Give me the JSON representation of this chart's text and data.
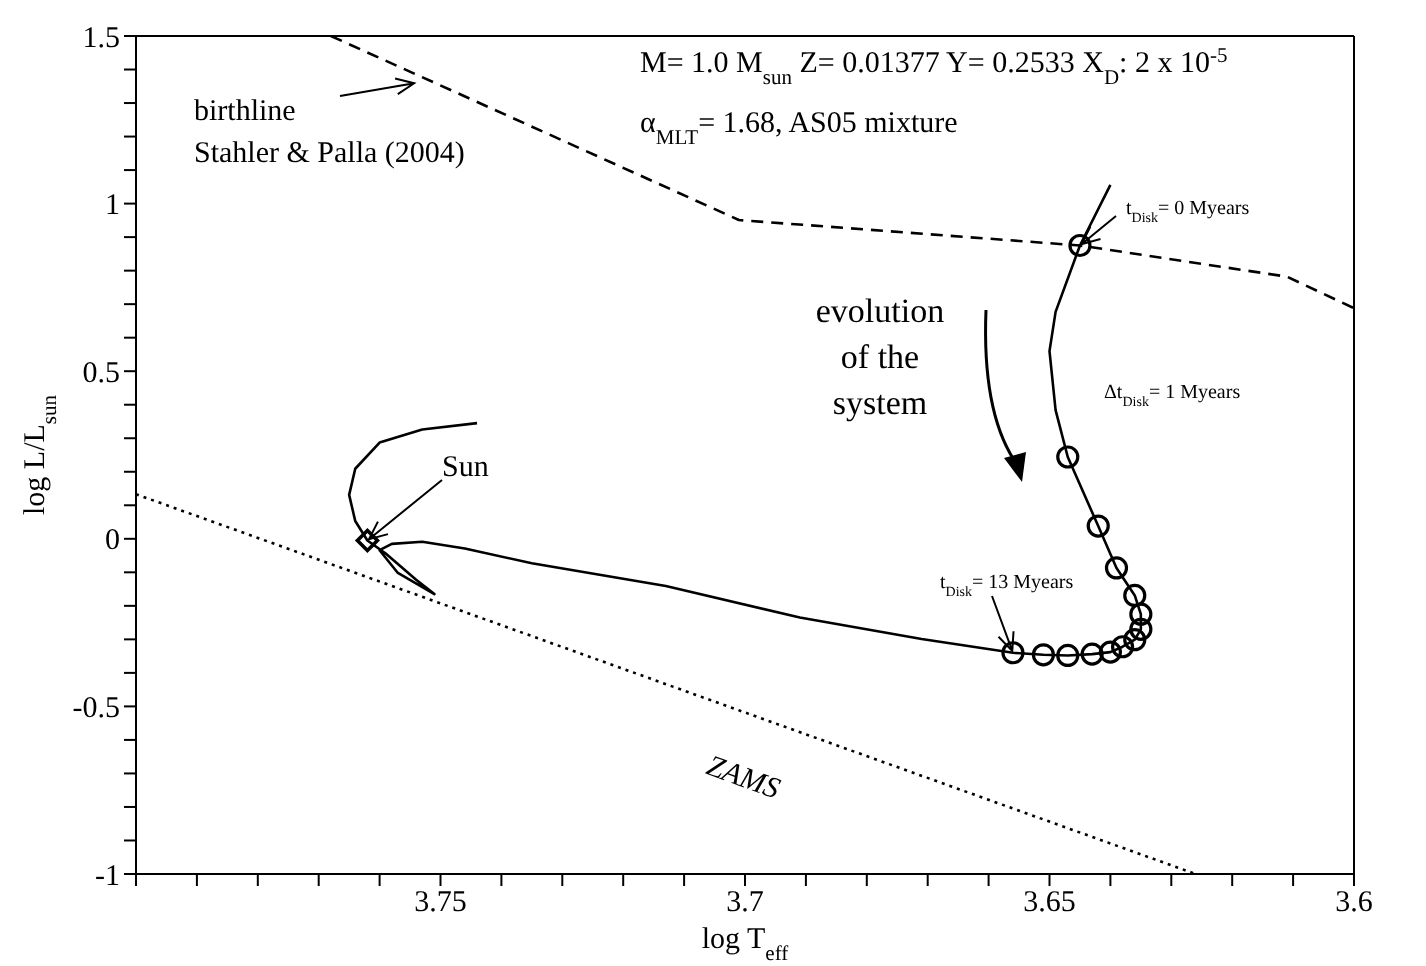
{
  "chart_data": {
    "type": "line",
    "xlabel": "log T$_{eff}$",
    "ylabel": "log L/L$_{sun}$",
    "xlim": [
      3.8,
      3.6
    ],
    "ylim": [
      -1,
      1.5
    ],
    "xticks": [
      {
        "value": 3.8,
        "label": null
      },
      {
        "value": 3.79,
        "label": null
      },
      {
        "value": 3.78,
        "label": null
      },
      {
        "value": 3.77,
        "label": null
      },
      {
        "value": 3.76,
        "label": null
      },
      3.75,
      {
        "value": 3.74,
        "label": null
      },
      {
        "value": 3.73,
        "label": null
      },
      {
        "value": 3.72,
        "label": null
      },
      {
        "value": 3.71,
        "label": null
      },
      3.7,
      {
        "value": 3.69,
        "label": null
      },
      {
        "value": 3.68,
        "label": null
      },
      {
        "value": 3.67,
        "label": null
      },
      {
        "value": 3.66,
        "label": null
      },
      3.65,
      {
        "value": 3.64,
        "label": null
      },
      {
        "value": 3.63,
        "label": null
      },
      {
        "value": 3.62,
        "label": null
      },
      {
        "value": 3.61,
        "label": null
      },
      3.6
    ],
    "yticks": [
      -1,
      {
        "value": -0.9,
        "label": null
      },
      {
        "value": -0.8,
        "label": null
      },
      {
        "value": -0.7,
        "label": null
      },
      {
        "value": -0.6,
        "label": null
      },
      -0.5,
      {
        "value": -0.4,
        "label": null
      },
      {
        "value": -0.3,
        "label": null
      },
      {
        "value": -0.2,
        "label": null
      },
      {
        "value": -0.1,
        "label": null
      },
      0,
      {
        "value": 0.1,
        "label": null
      },
      {
        "value": 0.2,
        "label": null
      },
      {
        "value": 0.3,
        "label": null
      },
      {
        "value": 0.4,
        "label": null
      },
      0.5,
      {
        "value": 0.6,
        "label": null
      },
      {
        "value": 0.7,
        "label": null
      },
      {
        "value": 0.8,
        "label": null
      },
      {
        "value": 0.9,
        "label": null
      },
      1,
      {
        "value": 1.1,
        "label": null
      },
      {
        "value": 1.2,
        "label": null
      },
      {
        "value": 1.3,
        "label": null
      },
      {
        "value": 1.4,
        "label": null
      },
      1.5
    ],
    "series": [
      {
        "color": "#000000",
        "line_style": "solid",
        "marker": "none",
        "x": [
          3.64,
          3.645,
          3.649,
          3.65,
          3.649,
          3.647,
          3.642,
          3.639,
          3.636,
          3.635,
          3.635,
          3.636,
          3.638,
          3.64,
          3.643,
          3.647,
          3.651,
          3.656,
          3.671,
          3.691,
          3.713,
          3.735,
          3.746,
          3.753,
          3.758,
          3.76,
          3.757,
          3.751,
          3.754,
          3.759,
          3.762,
          3.764,
          3.765,
          3.764,
          3.76,
          3.753,
          3.744
        ],
        "values": [
          1.056,
          0.875,
          0.677,
          0.56,
          0.384,
          0.244,
          0.038,
          -0.087,
          -0.169,
          -0.225,
          -0.27,
          -0.301,
          -0.322,
          -0.338,
          -0.344,
          -0.348,
          -0.346,
          -0.34,
          -0.299,
          -0.235,
          -0.141,
          -0.073,
          -0.029,
          -0.009,
          -0.015,
          -0.034,
          -0.102,
          -0.165,
          -0.122,
          -0.044,
          -0.005,
          0.053,
          0.131,
          0.209,
          0.287,
          0.326,
          0.345
        ]
      },
      {
        "color": "#000000",
        "line_style": "dashed",
        "marker": "none",
        "x": [
          3.768,
          3.701,
          3.645,
          3.611,
          3.6
        ],
        "values": [
          1.5,
          0.951,
          0.875,
          0.782,
          0.688
        ]
      },
      {
        "color": "#000000",
        "line_style": "dotted",
        "marker": "none",
        "x": [
          3.8,
          3.626
        ],
        "values": [
          0.133,
          -1
        ]
      },
      {
        "type": "scatter",
        "color": "#000000",
        "marker": "circle",
        "x": [
          3.645,
          3.647,
          3.642,
          3.639,
          3.636,
          3.635,
          3.635,
          3.636,
          3.638,
          3.64,
          3.643,
          3.647,
          3.651,
          3.656
        ],
        "values": [
          0.875,
          0.244,
          0.038,
          -0.087,
          -0.169,
          -0.225,
          -0.27,
          -0.301,
          -0.322,
          -0.338,
          -0.344,
          -0.348,
          -0.346,
          -0.34
        ]
      },
      {
        "type": "scatter",
        "color": "#000000",
        "marker": "diamond",
        "x": [
          3.762
        ],
        "values": [
          -0.005
        ]
      }
    ],
    "annotations": [
      "M= 1.0 M$_{sun}$ Z= 0.01377 Y= 0.2533 X$_{D}$: 2 x 10$^{-5}$",
      "α$_{MLT}$= 1.68, AS05 mixture",
      {
        "text": "birthline\nStahler & Palla (2004)",
        "x": 3.754,
        "y": 1.36
      },
      {
        "text": "t$_{Disk}$= 0 Myears",
        "x": 3.645,
        "y": 0.875
      },
      "Δt$_{Disk}$= 1 Myears",
      "evolution\nof the\nsystem",
      {
        "text": "Sun",
        "x": 3.762,
        "y": -0.005
      },
      {
        "text": "t$_{Disk}$= 13 Myears",
        "x": 3.656,
        "y": -0.34
      },
      "ZAMS"
    ]
  }
}
